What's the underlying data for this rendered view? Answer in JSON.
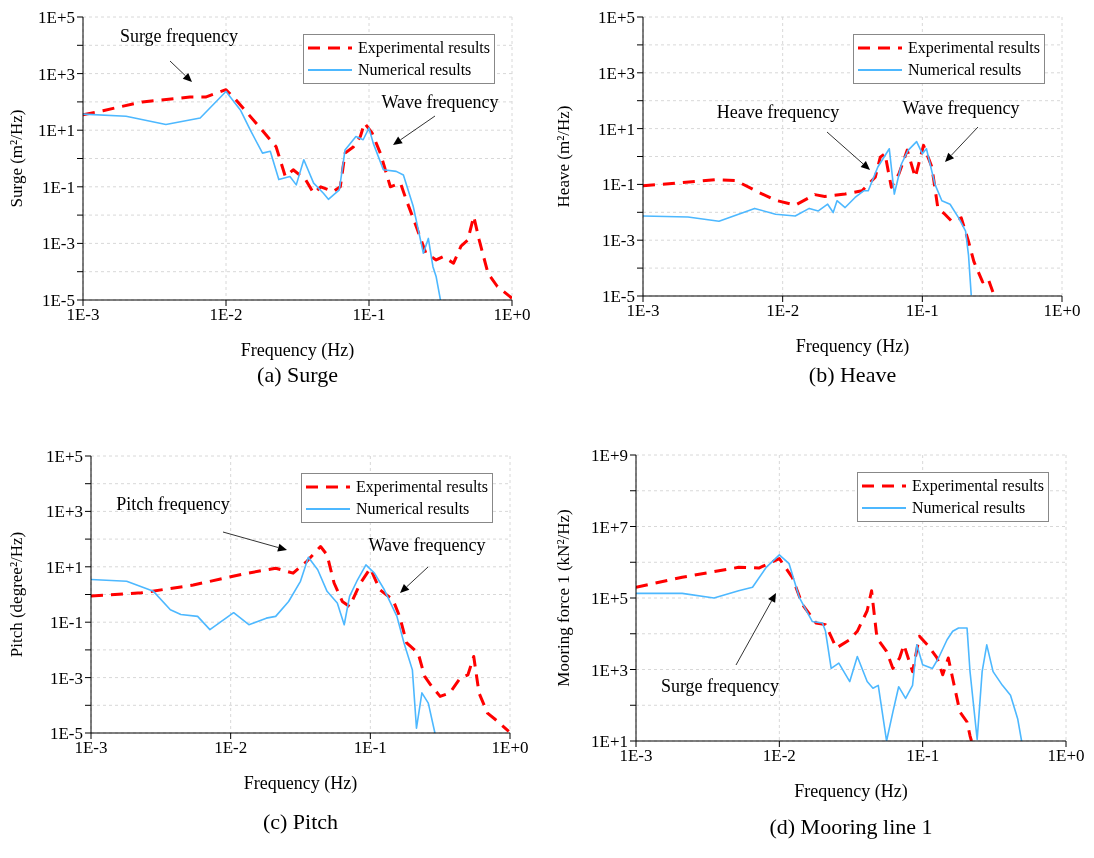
{
  "chart_data": [
    {
      "type": "line",
      "title": "(a) Surge",
      "xlabel": "Frequency (Hz)",
      "ylabel": "Surge (m²/Hz)",
      "log": "xy",
      "grid": true,
      "legend": "top right",
      "xlim": [
        0.001,
        1
      ],
      "xticks": [
        {
          "value": 0.001,
          "label": "1E-3"
        },
        {
          "value": 0.01,
          "label": "1E-2"
        },
        {
          "value": 0.1,
          "label": "1E-1"
        },
        {
          "value": 1,
          "label": "1E+0"
        }
      ],
      "ylim": [
        1e-05,
        100000
      ],
      "yticks": [
        {
          "value": 1e-05,
          "label": "1E-5"
        },
        {
          "value": 0.0001,
          "label": null
        },
        {
          "value": 0.001,
          "label": "1E-3"
        },
        {
          "value": 0.01,
          "label": null
        },
        {
          "value": 0.1,
          "label": "1E-1"
        },
        {
          "value": 1,
          "label": null
        },
        {
          "value": 10,
          "label": "1E+1"
        },
        {
          "value": 100,
          "label": null
        },
        {
          "value": 1000,
          "label": "1E+3"
        },
        {
          "value": 10000,
          "label": null
        },
        {
          "value": 100000,
          "label": "1E+5"
        }
      ],
      "series": [
        {
          "name": "Experimental results",
          "color": "#ff0000",
          "line_style": "dashed",
          "x": [
            0.001,
            0.00138,
            0.0026,
            0.0056,
            0.0072,
            0.01,
            0.0117,
            0.0162,
            0.0224,
            0.026,
            0.0295,
            0.036,
            0.041,
            0.046,
            0.056,
            0.063,
            0.068,
            0.078,
            0.087,
            0.093,
            0.105,
            0.12,
            0.141,
            0.166,
            0.182,
            0.214,
            0.25,
            0.295,
            0.33,
            0.39,
            0.44,
            0.49,
            0.54,
            0.59,
            0.68,
            0.79,
            1
          ],
          "values": [
            35,
            49,
            100,
            148,
            148,
            270,
            120,
            18,
            2.6,
            0.23,
            0.4,
            0.18,
            0.059,
            0.1,
            0.068,
            0.1,
            1.55,
            2.6,
            6,
            18,
            8,
            1.55,
            0.1,
            0.135,
            0.035,
            0.004,
            0.00045,
            0.00026,
            0.00034,
            0.0002,
            0.0008,
            0.0013,
            0.009,
            0.0013,
            8.7e-05,
            3e-05,
            1.15e-05
          ]
        },
        {
          "name": "Numerical results",
          "color": "#4db8ff",
          "line_style": "solid",
          "x": [
            0.001,
            0.002,
            0.0038,
            0.0066,
            0.01,
            0.0126,
            0.0148,
            0.018,
            0.0204,
            0.0234,
            0.028,
            0.031,
            0.035,
            0.041,
            0.048,
            0.052,
            0.062,
            0.068,
            0.081,
            0.091,
            0.1,
            0.107,
            0.126,
            0.155,
            0.174,
            0.204,
            0.24,
            0.26,
            0.28,
            0.295,
            0.316
          ],
          "values": [
            37,
            31,
            16,
            27,
            234,
            52,
            10,
            1.55,
            1.8,
            0.18,
            0.23,
            0.117,
            0.9,
            0.135,
            0.059,
            0.036,
            0.078,
            2,
            6,
            4.6,
            12,
            3.5,
            0.4,
            0.35,
            0.26,
            0.02,
            0.00045,
            0.0015,
            0.00015,
            6.6e-05,
            1e-05
          ]
        }
      ],
      "annotations": [
        "Surge frequency",
        "Wave frequency"
      ]
    },
    {
      "type": "line",
      "title": "(b) Heave",
      "xlabel": "Frequency (Hz)",
      "ylabel": "Heave (m²/Hz)",
      "log": "xy",
      "grid": true,
      "legend": "top right",
      "xlim": [
        0.001,
        1
      ],
      "xticks": [
        {
          "value": 0.001,
          "label": "1E-3"
        },
        {
          "value": 0.01,
          "label": "1E-2"
        },
        {
          "value": 0.1,
          "label": "1E-1"
        },
        {
          "value": 1,
          "label": "1E+0"
        }
      ],
      "ylim": [
        1e-05,
        100000
      ],
      "yticks": [
        {
          "value": 1e-05,
          "label": "1E-5"
        },
        {
          "value": 0.0001,
          "label": null
        },
        {
          "value": 0.001,
          "label": "1E-3"
        },
        {
          "value": 0.01,
          "label": null
        },
        {
          "value": 0.1,
          "label": "1E-1"
        },
        {
          "value": 1,
          "label": null
        },
        {
          "value": 10,
          "label": "1E+1"
        },
        {
          "value": 100,
          "label": null
        },
        {
          "value": 1000,
          "label": "1E+3"
        },
        {
          "value": 10000,
          "label": null
        },
        {
          "value": 100000,
          "label": "1E+5"
        }
      ],
      "series": [
        {
          "name": "Experimental results",
          "color": "#ff0000",
          "line_style": "dashed",
          "x": [
            0.001,
            0.0017,
            0.0033,
            0.0046,
            0.0068,
            0.0089,
            0.0123,
            0.017,
            0.02,
            0.028,
            0.037,
            0.046,
            0.05,
            0.054,
            0.06,
            0.068,
            0.078,
            0.089,
            0.102,
            0.117,
            0.129,
            0.145,
            0.162,
            0.19,
            0.214,
            0.234,
            0.27,
            0.295,
            0.32
          ],
          "values": [
            0.089,
            0.11,
            0.148,
            0.138,
            0.051,
            0.027,
            0.018,
            0.043,
            0.037,
            0.045,
            0.059,
            0.18,
            0.95,
            1.26,
            0.079,
            0.24,
            1.7,
            0.18,
            2.5,
            0.42,
            0.0148,
            0.0085,
            0.0048,
            0.0063,
            0.00091,
            0.00017,
            3.2e-05,
            4.3e-05,
            1.4e-05
          ]
        },
        {
          "name": "Numerical results",
          "color": "#4db8ff",
          "line_style": "solid",
          "x": [
            0.001,
            0.0021,
            0.0035,
            0.0063,
            0.0089,
            0.0123,
            0.0155,
            0.018,
            0.021,
            0.023,
            0.0245,
            0.028,
            0.033,
            0.038,
            0.041,
            0.048,
            0.058,
            0.063,
            0.071,
            0.079,
            0.091,
            0.1,
            0.107,
            0.123,
            0.138,
            0.158,
            0.182,
            0.204,
            0.214,
            0.224
          ],
          "values": [
            0.0074,
            0.0068,
            0.0048,
            0.0138,
            0.0085,
            0.0074,
            0.0138,
            0.0112,
            0.0195,
            0.0098,
            0.026,
            0.0148,
            0.034,
            0.059,
            0.059,
            0.42,
            1.9,
            0.045,
            0.55,
            1.66,
            3.4,
            1.26,
            1.9,
            0.102,
            0.026,
            0.0195,
            0.0063,
            0.0021,
            0.0003,
            1.05e-05
          ]
        }
      ],
      "annotations": [
        "Heave frequency",
        "Wave frequency"
      ]
    },
    {
      "type": "line",
      "title": "(c) Pitch",
      "xlabel": "Frequency (Hz)",
      "ylabel": "Pitch (degree²/Hz)",
      "log": "xy",
      "grid": true,
      "legend": "top right",
      "xlim": [
        0.001,
        1
      ],
      "xticks": [
        {
          "value": 0.001,
          "label": "1E-3"
        },
        {
          "value": 0.01,
          "label": "1E-2"
        },
        {
          "value": 0.1,
          "label": "1E-1"
        },
        {
          "value": 1,
          "label": "1E+0"
        }
      ],
      "ylim": [
        1e-05,
        100000
      ],
      "yticks": [
        {
          "value": 1e-05,
          "label": "1E-5"
        },
        {
          "value": 0.0001,
          "label": null
        },
        {
          "value": 0.001,
          "label": "1E-3"
        },
        {
          "value": 0.01,
          "label": null
        },
        {
          "value": 0.1,
          "label": "1E-1"
        },
        {
          "value": 1,
          "label": null
        },
        {
          "value": 10,
          "label": "1E+1"
        },
        {
          "value": 100,
          "label": null
        },
        {
          "value": 1000,
          "label": "1E+3"
        },
        {
          "value": 10000,
          "label": null
        },
        {
          "value": 100000,
          "label": "1E+5"
        }
      ],
      "series": [
        {
          "name": "Experimental results",
          "color": "#ff0000",
          "line_style": "dashed",
          "x": [
            0.001,
            0.0023,
            0.0054,
            0.0123,
            0.021,
            0.028,
            0.035,
            0.044,
            0.049,
            0.055,
            0.063,
            0.071,
            0.085,
            0.1,
            0.117,
            0.145,
            0.162,
            0.182,
            0.22,
            0.245,
            0.27,
            0.316,
            0.37,
            0.44,
            0.5,
            0.55,
            0.6,
            0.69,
            0.79,
            0.98
          ],
          "values": [
            0.89,
            1.15,
            2.2,
            5.5,
            8.9,
            5.9,
            15.5,
            54,
            27,
            2.6,
            0.56,
            0.37,
            2.6,
            8.9,
            1.48,
            0.65,
            0.162,
            0.018,
            0.0076,
            0.0011,
            0.00055,
            0.00021,
            0.00028,
            0.00095,
            0.00126,
            0.0058,
            0.00028,
            5.2e-05,
            3e-05,
            1.15e-05
          ]
        },
        {
          "name": "Numerical results",
          "color": "#4db8ff",
          "line_style": "solid",
          "x": [
            0.001,
            0.0018,
            0.0028,
            0.0037,
            0.0044,
            0.0058,
            0.0071,
            0.0105,
            0.0135,
            0.018,
            0.021,
            0.026,
            0.0316,
            0.036,
            0.042,
            0.049,
            0.058,
            0.065,
            0.071,
            0.081,
            0.093,
            0.107,
            0.126,
            0.155,
            0.174,
            0.2,
            0.214,
            0.234,
            0.26,
            0.29
          ],
          "values": [
            3.5,
            3,
            1.3,
            0.28,
            0.19,
            0.162,
            0.054,
            0.22,
            0.081,
            0.14,
            0.162,
            0.56,
            3,
            22,
            7.8,
            1.3,
            0.49,
            0.081,
            0.85,
            3.4,
            11.7,
            5.9,
            1.48,
            0.162,
            0.018,
            0.0019,
            1.5e-05,
            0.00028,
            0.00012,
            1e-05
          ]
        }
      ],
      "annotations": [
        "Pitch frequency",
        "Wave frequency"
      ]
    },
    {
      "type": "line",
      "title": "(d) Mooring line 1",
      "xlabel": "Frequency (Hz)",
      "ylabel": "Mooring force 1 (kN²/Hz)",
      "log": "xy",
      "grid": true,
      "legend": "top right",
      "xlim": [
        0.001,
        1
      ],
      "xticks": [
        {
          "value": 0.001,
          "label": "1E-3"
        },
        {
          "value": 0.01,
          "label": "1E-2"
        },
        {
          "value": 0.1,
          "label": "1E-1"
        },
        {
          "value": 1,
          "label": "1E+0"
        }
      ],
      "ylim": [
        10,
        1000000000
      ],
      "yticks": [
        {
          "value": 10,
          "label": "1E+1"
        },
        {
          "value": 100,
          "label": null
        },
        {
          "value": 1000,
          "label": "1E+3"
        },
        {
          "value": 10000,
          "label": null
        },
        {
          "value": 100000,
          "label": "1E+5"
        },
        {
          "value": 1000000,
          "label": null
        },
        {
          "value": 10000000,
          "label": "1E+7"
        },
        {
          "value": 100000000,
          "label": null
        },
        {
          "value": 1000000000,
          "label": "1E+9"
        }
      ],
      "series": [
        {
          "name": "Experimental results",
          "color": "#ff0000",
          "line_style": "dashed",
          "x": [
            0.001,
            0.0021,
            0.0052,
            0.0072,
            0.01,
            0.0123,
            0.0145,
            0.018,
            0.021,
            0.025,
            0.031,
            0.035,
            0.041,
            0.044,
            0.048,
            0.056,
            0.062,
            0.069,
            0.074,
            0.085,
            0.095,
            0.11,
            0.126,
            0.138,
            0.151,
            0.162,
            0.182,
            0.204,
            0.214,
            0.219
          ],
          "values": [
            200000,
            380000,
            720000,
            690000,
            1260000,
            380000,
            66000,
            20000,
            18000,
            4000,
            6800,
            11700,
            44000,
            160000,
            7600,
            3200,
            1070,
            2100,
            4900,
            870,
            8500,
            4500,
            2100,
            710,
            2100,
            560,
            65,
            34,
            14,
            10
          ]
        },
        {
          "name": "Numerical results",
          "color": "#4db8ff",
          "line_style": "solid",
          "x": [
            0.001,
            0.0021,
            0.0035,
            0.0052,
            0.0065,
            0.0081,
            0.01,
            0.0117,
            0.0138,
            0.017,
            0.02,
            0.021,
            0.023,
            0.026,
            0.031,
            0.035,
            0.041,
            0.045,
            0.049,
            0.056,
            0.062,
            0.068,
            0.076,
            0.085,
            0.091,
            0.1,
            0.117,
            0.129,
            0.148,
            0.162,
            0.178,
            0.204,
            0.214,
            0.24,
            0.26,
            0.28,
            0.31,
            0.36,
            0.41,
            0.46,
            0.49
          ],
          "values": [
            135000,
            135000,
            100000,
            160000,
            200000,
            720000,
            1600000,
            910000,
            102000,
            22000,
            20000,
            11700,
            1070,
            1500,
            460,
            2300,
            460,
            300,
            360,
            10,
            65,
            330,
            155,
            360,
            4900,
            1350,
            1070,
            2100,
            6800,
            11700,
            14500,
            14500,
            870,
            11,
            870,
            4900,
            870,
            360,
            190,
            42,
            10
          ]
        }
      ],
      "annotations": [
        "Surge frequency"
      ]
    }
  ]
}
